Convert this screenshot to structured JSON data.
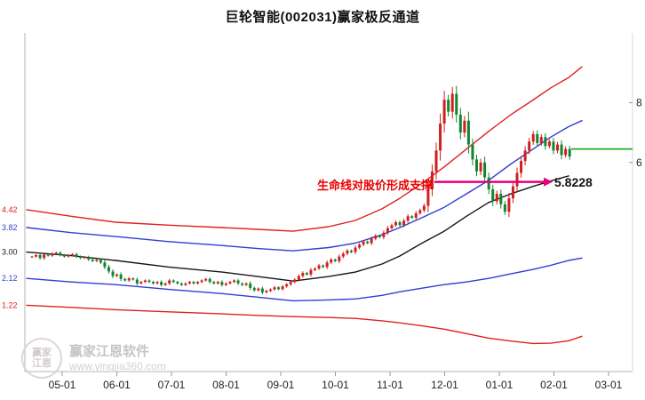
{
  "header": {
    "title": "巨轮智能(002031)赢家极反通道"
  },
  "axes": {
    "x_labels": [
      "05-01",
      "06-01",
      "07-01",
      "08-01",
      "09-01",
      "10-01",
      "11-01",
      "12-01",
      "01-01",
      "02-01",
      "03-01"
    ],
    "y_right": [
      {
        "text": "8",
        "value": 8
      },
      {
        "text": "6",
        "value": 6
      }
    ]
  },
  "annotations": {
    "support_text": "生命线对股价形成支撑",
    "support_price": "5.8228",
    "arrow_color": "#e4007f",
    "current_price_color": "#00a000"
  },
  "watermark": {
    "brand": "赢家江恩软件",
    "url": "www.yingjia360.com",
    "logo_line1": "赢家",
    "logo_line2": "江恩"
  },
  "chart_data": {
    "type": "candlestick",
    "title": "巨轮智能(002031)赢家极反通道",
    "xlabel": "",
    "ylabel": "",
    "grid": false,
    "legend": "none",
    "ylim": [
      -1.0,
      10.1
    ],
    "x_tick_labels": [
      "05-01",
      "06-01",
      "07-01",
      "08-01",
      "09-01",
      "10-01",
      "11-01",
      "12-01",
      "01-01",
      "02-01",
      "03-01"
    ],
    "y_tick_values": [
      8,
      6
    ],
    "up_color": "#cf1f1f",
    "down_color": "#11852f",
    "closes": [
      2.85,
      2.9,
      2.8,
      2.92,
      2.88,
      2.95,
      2.98,
      2.9,
      2.85,
      2.9,
      2.93,
      2.85,
      2.8,
      2.83,
      2.75,
      2.7,
      2.74,
      2.65,
      2.5,
      2.35,
      2.2,
      2.25,
      2.1,
      2.05,
      2.12,
      2.08,
      1.95,
      2.0,
      2.05,
      2.0,
      1.95,
      2.0,
      1.9,
      1.95,
      2.05,
      2.0,
      1.95,
      1.9,
      1.95,
      2.0,
      1.95,
      2.0,
      2.05,
      2.1,
      2.0,
      1.95,
      2.0,
      1.9,
      1.95,
      2.0,
      2.05,
      1.95,
      1.9,
      1.95,
      1.8,
      1.72,
      1.78,
      1.65,
      1.7,
      1.75,
      1.82,
      1.76,
      1.85,
      1.92,
      2.0,
      2.08,
      2.2,
      2.3,
      2.25,
      2.4,
      2.45,
      2.55,
      2.5,
      2.65,
      2.75,
      2.7,
      2.85,
      2.95,
      3.05,
      3.0,
      3.15,
      3.25,
      3.35,
      3.3,
      3.45,
      3.55,
      3.5,
      3.65,
      3.8,
      3.9,
      4.0,
      3.9,
      4.05,
      4.2,
      4.15,
      4.3,
      4.4,
      4.55,
      5.1,
      5.7,
      6.4,
      7.3,
      8.1,
      7.7,
      8.3,
      7.6,
      7.0,
      7.4,
      6.6,
      6.1,
      5.7,
      6.0,
      5.5,
      5.1,
      4.7,
      4.95,
      4.6,
      4.35,
      4.8,
      5.2,
      5.65,
      6.05,
      6.4,
      6.7,
      6.95,
      6.65,
      6.85,
      6.55,
      6.7,
      6.4,
      6.6,
      6.25,
      6.45,
      6.2
    ],
    "channel_lines": [
      {
        "name": "outer-resistance-line",
        "color": "#e02020",
        "x": [
          30,
          80,
          130,
          190,
          250,
          290,
          330,
          370,
          400,
          430,
          450,
          475,
          500,
          525,
          550,
          575,
          600,
          620,
          640,
          655
        ],
        "values": [
          4.42,
          4.2,
          4.0,
          3.9,
          3.82,
          3.76,
          3.7,
          3.85,
          4.06,
          4.45,
          4.8,
          5.3,
          5.85,
          6.45,
          7.04,
          7.6,
          8.09,
          8.5,
          8.84,
          9.2
        ]
      },
      {
        "name": "inner-resistance-line",
        "color": "#2f3fd0",
        "x": [
          30,
          80,
          130,
          190,
          250,
          290,
          330,
          370,
          400,
          430,
          450,
          475,
          500,
          525,
          550,
          575,
          600,
          620,
          640,
          655
        ],
        "values": [
          3.82,
          3.65,
          3.52,
          3.35,
          3.22,
          3.12,
          3.04,
          3.15,
          3.3,
          3.58,
          3.82,
          4.15,
          4.5,
          4.95,
          5.4,
          5.95,
          6.45,
          6.85,
          7.2,
          7.4
        ]
      },
      {
        "name": "lifeline",
        "color": "#161616",
        "x": [
          30,
          80,
          130,
          190,
          250,
          290,
          330,
          370,
          400,
          430,
          450,
          475,
          500,
          525,
          550,
          575,
          600,
          620,
          640
        ],
        "values": [
          3.0,
          2.88,
          2.72,
          2.5,
          2.33,
          2.18,
          2.03,
          2.18,
          2.33,
          2.6,
          2.87,
          3.3,
          3.7,
          4.2,
          4.66,
          4.95,
          5.2,
          5.38,
          5.55
        ]
      },
      {
        "name": "inner-support-line",
        "color": "#2f3fd0",
        "x": [
          30,
          80,
          130,
          190,
          250,
          290,
          330,
          370,
          400,
          430,
          450,
          475,
          500,
          525,
          550,
          575,
          600,
          620,
          640,
          655
        ],
        "values": [
          2.12,
          2.0,
          1.91,
          1.75,
          1.61,
          1.49,
          1.37,
          1.4,
          1.43,
          1.55,
          1.67,
          1.79,
          1.91,
          2.0,
          2.12,
          2.27,
          2.42,
          2.56,
          2.72,
          2.8
        ]
      },
      {
        "name": "outer-support-line",
        "color": "#e02020",
        "x": [
          30,
          80,
          130,
          190,
          250,
          290,
          330,
          370,
          400,
          430,
          450,
          475,
          500,
          525,
          550,
          575,
          600,
          620,
          640,
          655
        ],
        "values": [
          1.22,
          1.15,
          1.07,
          1.0,
          0.93,
          0.88,
          0.84,
          0.81,
          0.78,
          0.7,
          0.63,
          0.53,
          0.42,
          0.27,
          0.12,
          0.02,
          -0.06,
          -0.05,
          0.03,
          0.18
        ]
      }
    ],
    "support_arrow": {
      "label": "5.8228",
      "value": 5.35,
      "x_from": 489,
      "x_to": 612
    },
    "current_price_line": {
      "value": 6.45,
      "x_from": 643,
      "x_to": 712
    }
  }
}
